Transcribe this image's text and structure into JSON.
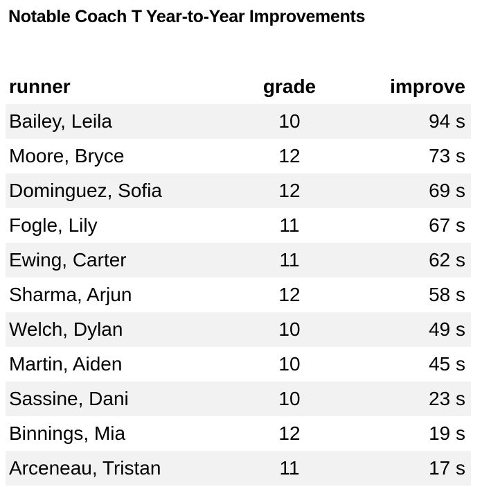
{
  "title": "Notable Coach T Year-to-Year Improvements",
  "table": {
    "header": [
      "runner",
      "grade",
      "improve"
    ],
    "rows": [
      [
        "Bailey, Leila",
        "10",
        "94 s"
      ],
      [
        "Moore, Bryce",
        "12",
        "73 s"
      ],
      [
        "Dominguez, Sofia",
        "12",
        "69 s"
      ],
      [
        "Fogle, Lily",
        "11",
        "67 s"
      ],
      [
        "Ewing, Carter",
        "11",
        "62 s"
      ],
      [
        "Sharma, Arjun",
        "12",
        "58 s"
      ],
      [
        "Welch, Dylan",
        "10",
        "49 s"
      ],
      [
        "Martin, Aiden",
        "10",
        "45 s"
      ],
      [
        "Sassine, Dani",
        "10",
        "23 s"
      ],
      [
        "Binnings, Mia",
        "12",
        "19 s"
      ],
      [
        "Arceneau, Tristan",
        "11",
        "17 s"
      ]
    ]
  }
}
